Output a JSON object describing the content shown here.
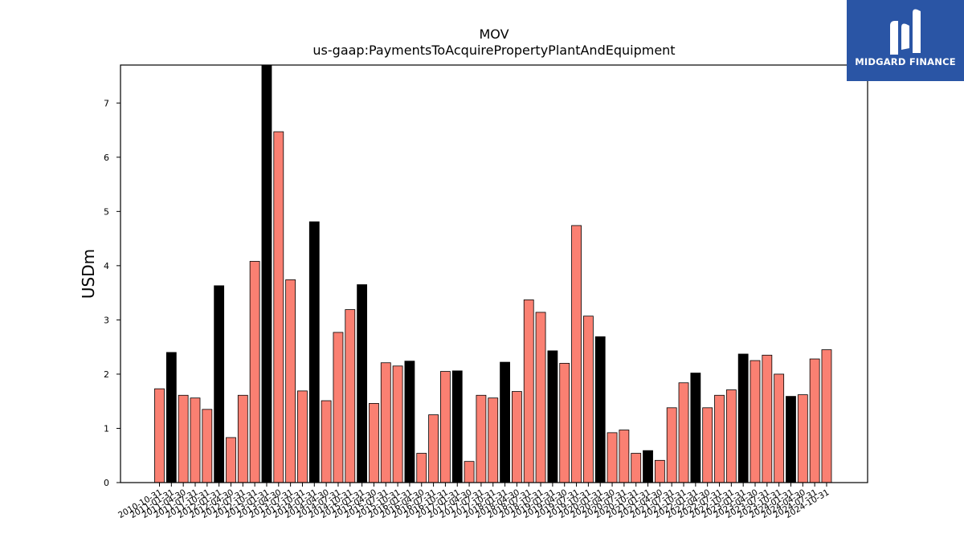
{
  "chart_data": {
    "type": "bar",
    "title": "MOV",
    "subtitle": "us-gaap:PaymentsToAcquirePropertyPlantAndEquipment",
    "ylabel": "USDm",
    "xlabel": "",
    "ylim": [
      0,
      7.7
    ],
    "yticks": [
      0,
      1,
      2,
      3,
      4,
      5,
      6,
      7
    ],
    "grid": false,
    "colors": {
      "quarter": "#fa8072",
      "fiscal_year": "#000000",
      "edge": "#000000"
    },
    "categories": [
      "2010-10-31",
      "2011-01-31",
      "2011-04-30",
      "2011-07-31",
      "2011-10-31",
      "2012-01-31",
      "2012-04-30",
      "2012-07-31",
      "2012-10-31",
      "2013-01-31",
      "2013-04-30",
      "2013-07-31",
      "2013-10-31",
      "2014-01-31",
      "2014-04-30",
      "2014-07-31",
      "2014-10-31",
      "2015-01-31",
      "2015-04-30",
      "2015-07-31",
      "2015-10-31",
      "2016-01-31",
      "2016-04-30",
      "2016-07-31",
      "2016-10-31",
      "2017-01-31",
      "2017-04-30",
      "2017-07-31",
      "2017-10-31",
      "2018-01-31",
      "2018-04-30",
      "2018-07-31",
      "2018-10-31",
      "2019-01-31",
      "2019-04-30",
      "2019-07-31",
      "2019-10-31",
      "2020-01-31",
      "2020-04-30",
      "2020-07-31",
      "2020-10-31",
      "2021-01-31",
      "2021-04-30",
      "2021-07-31",
      "2021-10-31",
      "2022-01-31",
      "2022-04-30",
      "2022-07-31",
      "2022-10-31",
      "2023-01-31",
      "2023-04-30",
      "2023-07-31",
      "2023-10-31",
      "2024-01-31",
      "2024-04-30",
      "2024-07-31",
      "2024-10-31"
    ],
    "values": [
      1.73,
      2.4,
      1.61,
      1.56,
      1.35,
      3.63,
      0.83,
      1.61,
      4.08,
      7.8,
      6.47,
      3.74,
      1.69,
      4.81,
      1.51,
      2.77,
      3.19,
      3.65,
      1.46,
      2.21,
      2.15,
      2.24,
      0.54,
      1.25,
      2.05,
      2.06,
      0.39,
      1.61,
      1.56,
      2.22,
      1.68,
      3.37,
      3.14,
      2.43,
      2.2,
      4.74,
      3.07,
      2.69,
      0.92,
      0.97,
      0.54,
      0.59,
      0.41,
      1.38,
      1.84,
      2.02,
      1.38,
      1.61,
      1.71,
      2.37,
      2.25,
      2.35,
      2.0,
      1.59,
      1.62,
      2.28,
      2.45
    ],
    "fiscal_year_end": [
      false,
      true,
      false,
      false,
      false,
      true,
      false,
      false,
      false,
      true,
      false,
      false,
      false,
      true,
      false,
      false,
      false,
      true,
      false,
      false,
      false,
      true,
      false,
      false,
      false,
      true,
      false,
      false,
      false,
      true,
      false,
      false,
      false,
      true,
      false,
      false,
      false,
      true,
      false,
      false,
      false,
      true,
      false,
      false,
      false,
      true,
      false,
      false,
      false,
      true,
      false,
      false,
      false,
      true,
      false,
      false,
      false
    ]
  },
  "logo": {
    "text": "MIDGARD FINANCE"
  }
}
